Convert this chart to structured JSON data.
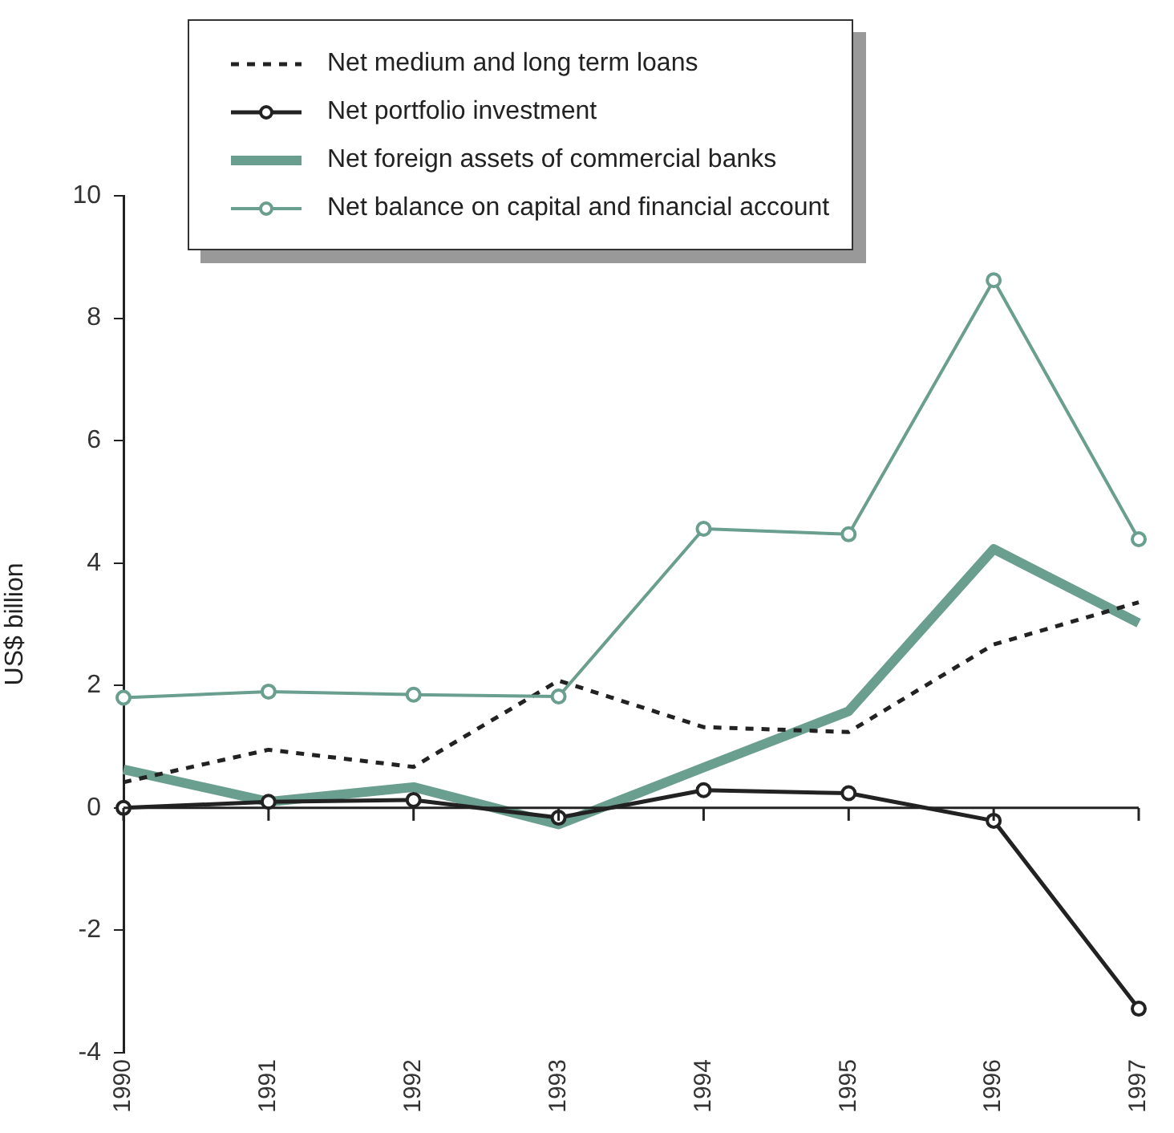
{
  "chart_data": {
    "type": "line",
    "ylabel": "US$ billion",
    "categories": [
      "1990",
      "1991",
      "1992",
      "1993",
      "1994",
      "1995",
      "1996",
      "1997"
    ],
    "ylim": [
      -4,
      10
    ],
    "yticks": [
      -4,
      -2,
      0,
      2,
      4,
      6,
      8,
      10
    ],
    "legend": "top",
    "series": [
      {
        "name": "Net medium and long term loans",
        "color": "#222222",
        "line_style": "dashed",
        "marker": "none",
        "values": [
          0.42,
          0.95,
          0.67,
          2.08,
          1.32,
          1.24,
          2.67,
          3.36
        ]
      },
      {
        "name": "Net portfolio investment",
        "color": "#222222",
        "line_style": "solid",
        "marker": "circle",
        "values": [
          0,
          0.1,
          0.13,
          -0.16,
          0.29,
          0.24,
          -0.21,
          -3.28
        ]
      },
      {
        "name": "Net foreign assets of commercial banks",
        "color": "#6a9e8f",
        "line_style": "solid",
        "marker": "none",
        "values": [
          0.63,
          0.1,
          0.34,
          -0.27,
          0.66,
          1.58,
          4.23,
          3.02
        ]
      },
      {
        "name": "Net balance on capital and financial account",
        "color": "#6a9e8f",
        "line_style": "solid",
        "marker": "circle",
        "values": [
          1.8,
          1.9,
          1.85,
          1.82,
          4.56,
          4.47,
          8.62,
          4.39
        ]
      }
    ]
  }
}
